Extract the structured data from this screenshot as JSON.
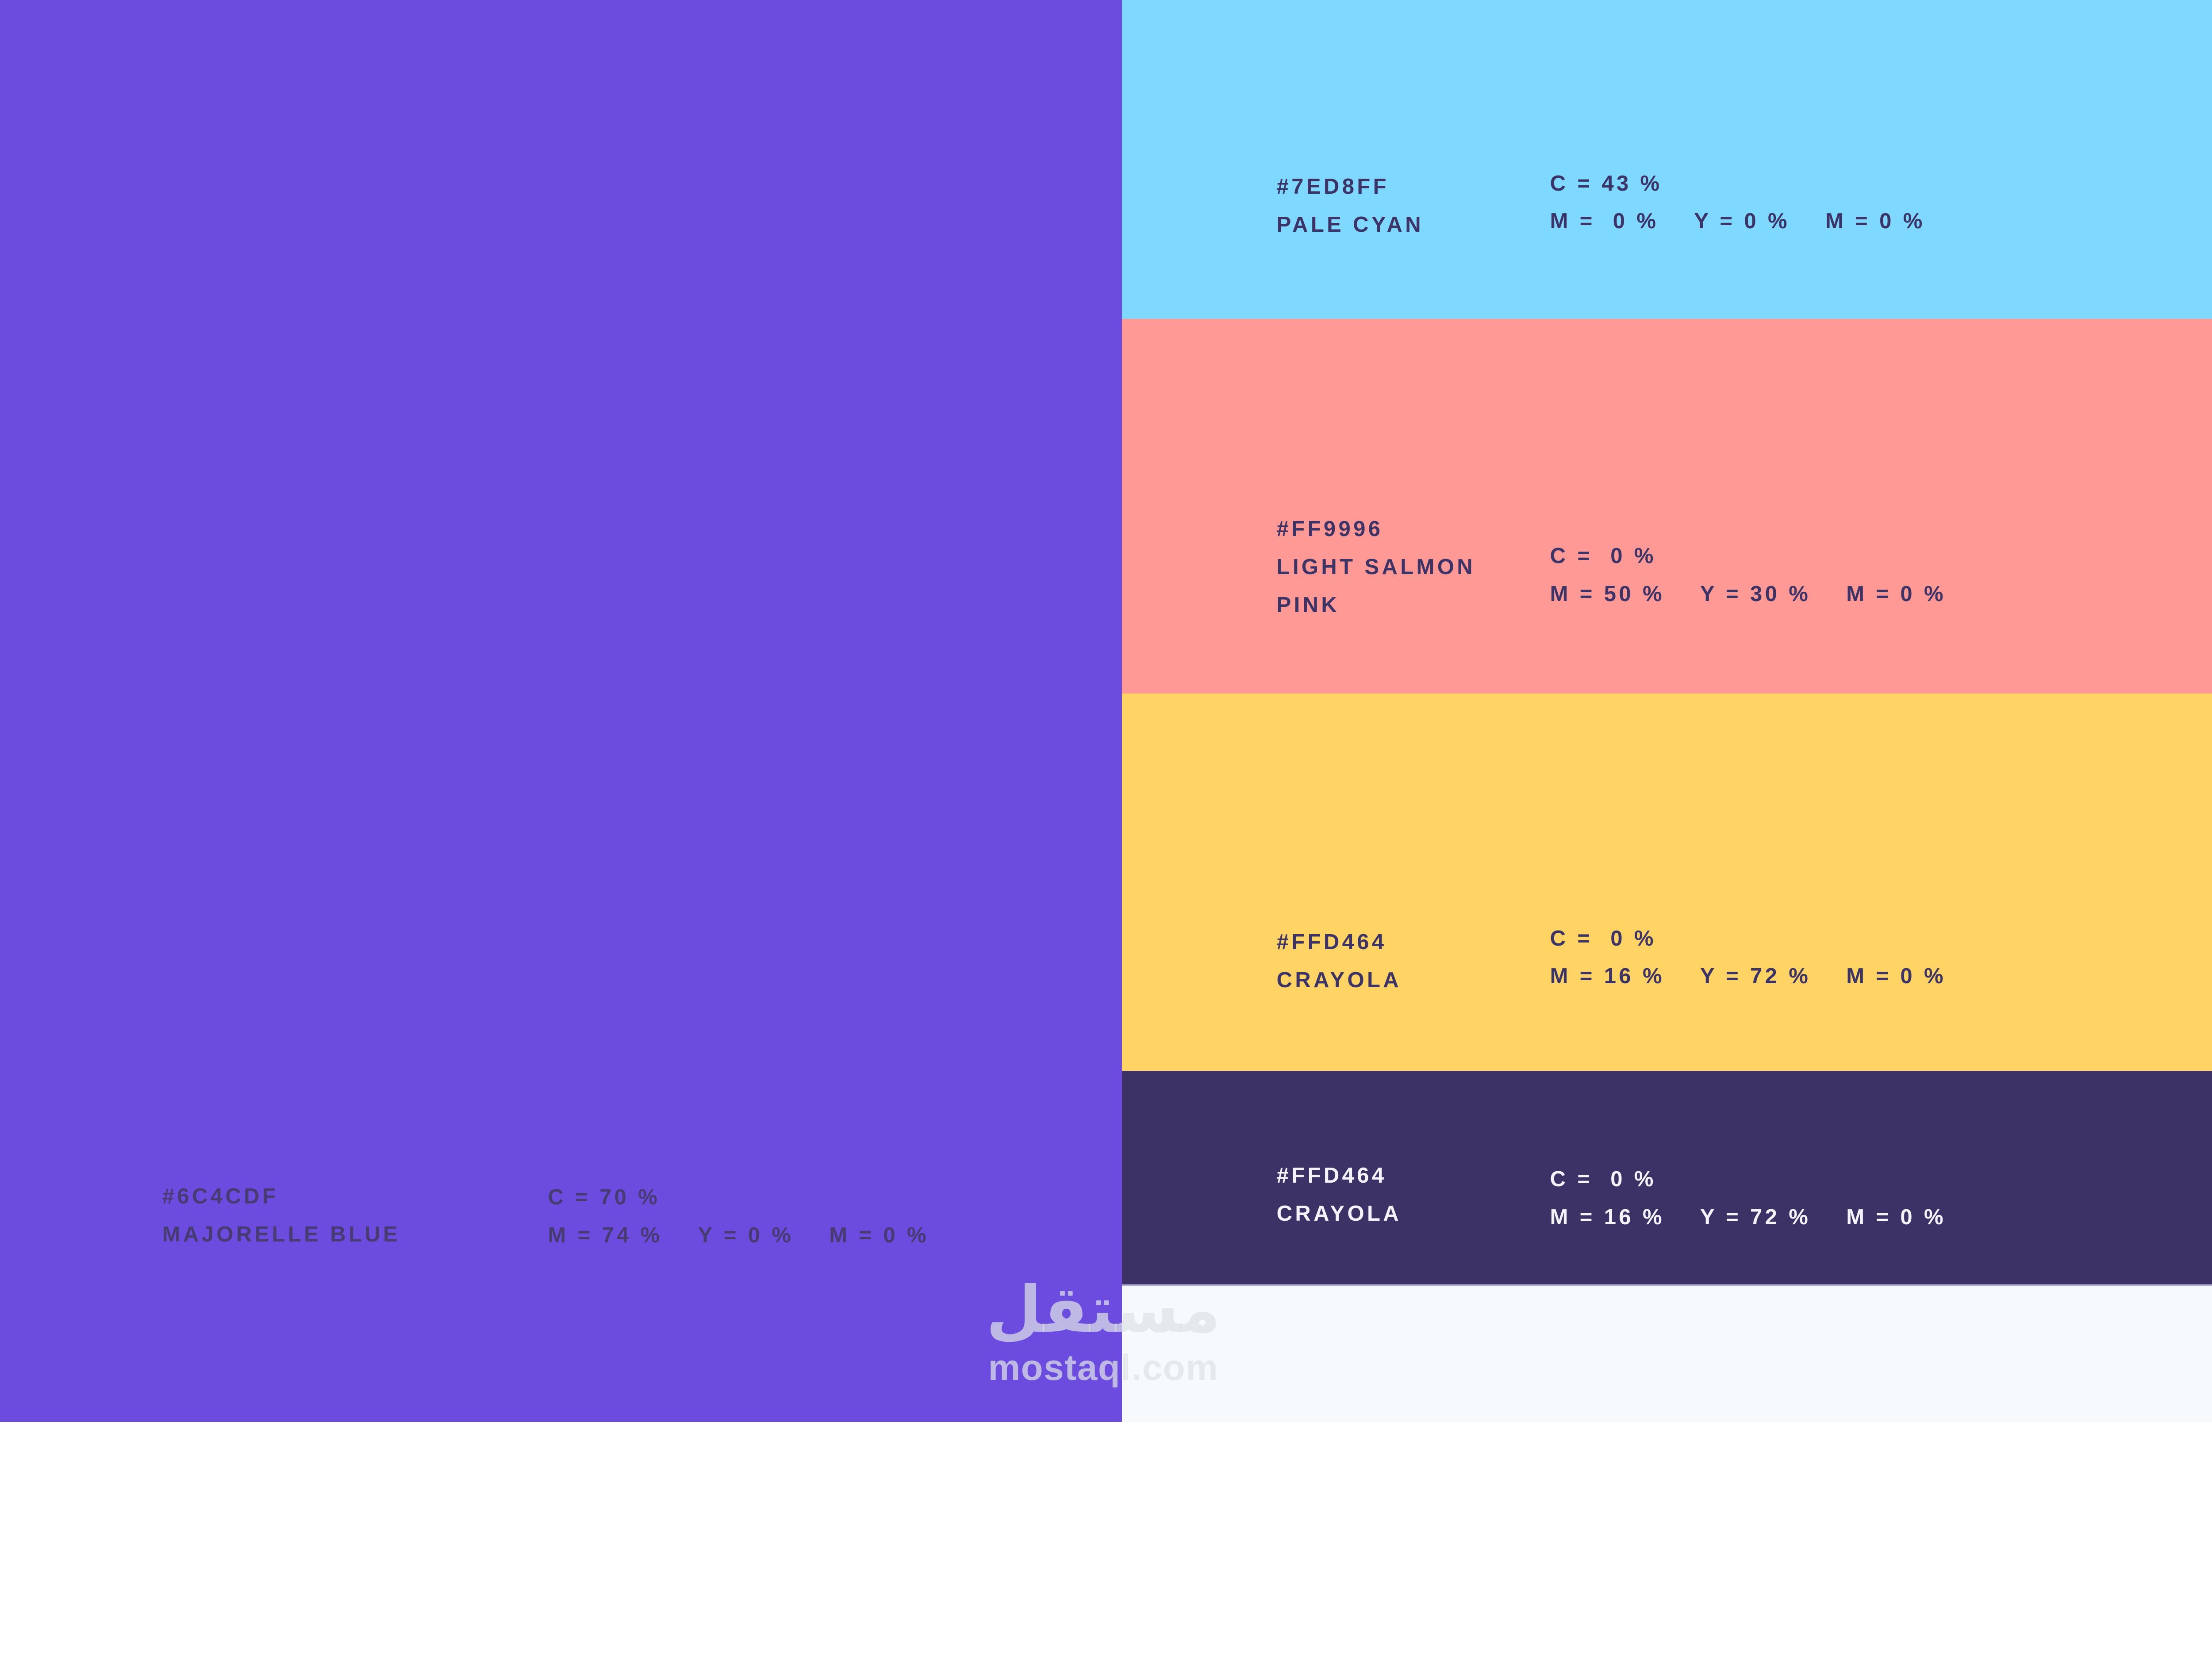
{
  "palette": [
    {
      "id": "majorelle-blue",
      "hex": "#6C4CDF",
      "name_lines": [
        "MAJORELLE BLUE"
      ],
      "swatch": "#6C4CDF",
      "ink": "#473C72",
      "cmyk_c": "C = 70 %",
      "cmyk_m": "M = 74 %",
      "cmyk_y": "Y = 0 %",
      "cmyk_k": "M = 0 %"
    },
    {
      "id": "pale-cyan",
      "hex": "#7ED8FF",
      "name_lines": [
        "PALE CYAN"
      ],
      "swatch": "#7ED8FF",
      "ink": "#3C3366",
      "cmyk_c": "C = 43 %",
      "cmyk_m": "M =  0 %",
      "cmyk_y": "Y = 0 %",
      "cmyk_k": "M = 0 %"
    },
    {
      "id": "light-salmon-pink",
      "hex": "#FF9996",
      "name_lines": [
        "LIGHT SALMON",
        "PINK"
      ],
      "swatch": "#FF9996",
      "ink": "#3C3366",
      "cmyk_c": "C =  0 %",
      "cmyk_m": "M = 50 %",
      "cmyk_y": "Y = 30 %",
      "cmyk_k": "M = 0 %"
    },
    {
      "id": "crayola",
      "hex": "#FFD464",
      "name_lines": [
        "CRAYOLA"
      ],
      "swatch": "#FFD464",
      "ink": "#3C3366",
      "cmyk_c": "C =  0 %",
      "cmyk_m": "M = 16 %",
      "cmyk_y": "Y = 72 %",
      "cmyk_k": "M = 0 %"
    },
    {
      "id": "crayola-dark-band",
      "hex": "#FFD464",
      "name_lines": [
        "CRAYOLA"
      ],
      "swatch": "#3C3265",
      "ink": "#F5F3FB",
      "cmyk_c": "C =  0 %",
      "cmyk_m": "M = 16 %",
      "cmyk_y": "Y = 72 %",
      "cmyk_k": "M = 0 %"
    }
  ],
  "footer": {
    "background": "#F7FAFC"
  },
  "watermark": {
    "arabic": "مستقل",
    "latin": "mostaql.com",
    "color": "rgba(222,226,230,0.72)"
  }
}
